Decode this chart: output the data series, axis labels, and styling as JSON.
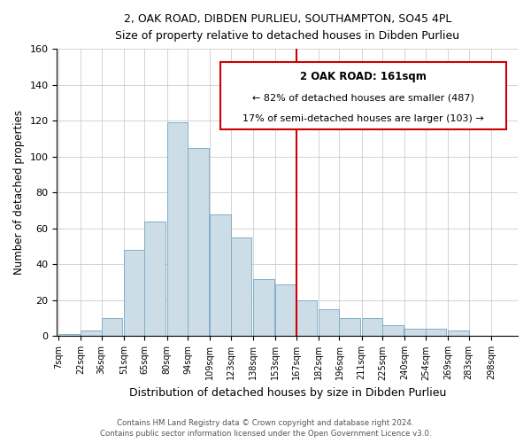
{
  "title": "2, OAK ROAD, DIBDEN PURLIEU, SOUTHAMPTON, SO45 4PL",
  "subtitle": "Size of property relative to detached houses in Dibden Purlieu",
  "xlabel": "Distribution of detached houses by size in Dibden Purlieu",
  "ylabel": "Number of detached properties",
  "bin_labels": [
    "7sqm",
    "22sqm",
    "36sqm",
    "51sqm",
    "65sqm",
    "80sqm",
    "94sqm",
    "109sqm",
    "123sqm",
    "138sqm",
    "153sqm",
    "167sqm",
    "182sqm",
    "196sqm",
    "211sqm",
    "225sqm",
    "240sqm",
    "254sqm",
    "269sqm",
    "283sqm",
    "298sqm"
  ],
  "bar_heights": [
    1,
    3,
    10,
    48,
    64,
    119,
    105,
    68,
    55,
    32,
    29,
    20,
    15,
    10,
    10,
    6,
    4,
    4,
    3,
    0,
    0
  ],
  "bar_color": "#ccdde8",
  "bar_edge_color": "#82aec8",
  "property_line_label": "2 OAK ROAD: 161sqm",
  "annotation_line1": "← 82% of detached houses are smaller (487)",
  "annotation_line2": "17% of semi-detached houses are larger (103) →",
  "annotation_box_color": "#ffffff",
  "annotation_box_edge": "#cc0000",
  "vline_color": "#cc0000",
  "ylim": [
    0,
    160
  ],
  "footer1": "Contains HM Land Registry data © Crown copyright and database right 2024.",
  "footer2": "Contains public sector information licensed under the Open Government Licence v3.0.",
  "bin_starts": [
    7,
    22,
    36,
    51,
    65,
    80,
    94,
    109,
    123,
    138,
    153,
    167,
    182,
    196,
    211,
    225,
    240,
    254,
    269,
    283,
    298
  ],
  "bin_width": 14,
  "prop_vline_x": 167
}
